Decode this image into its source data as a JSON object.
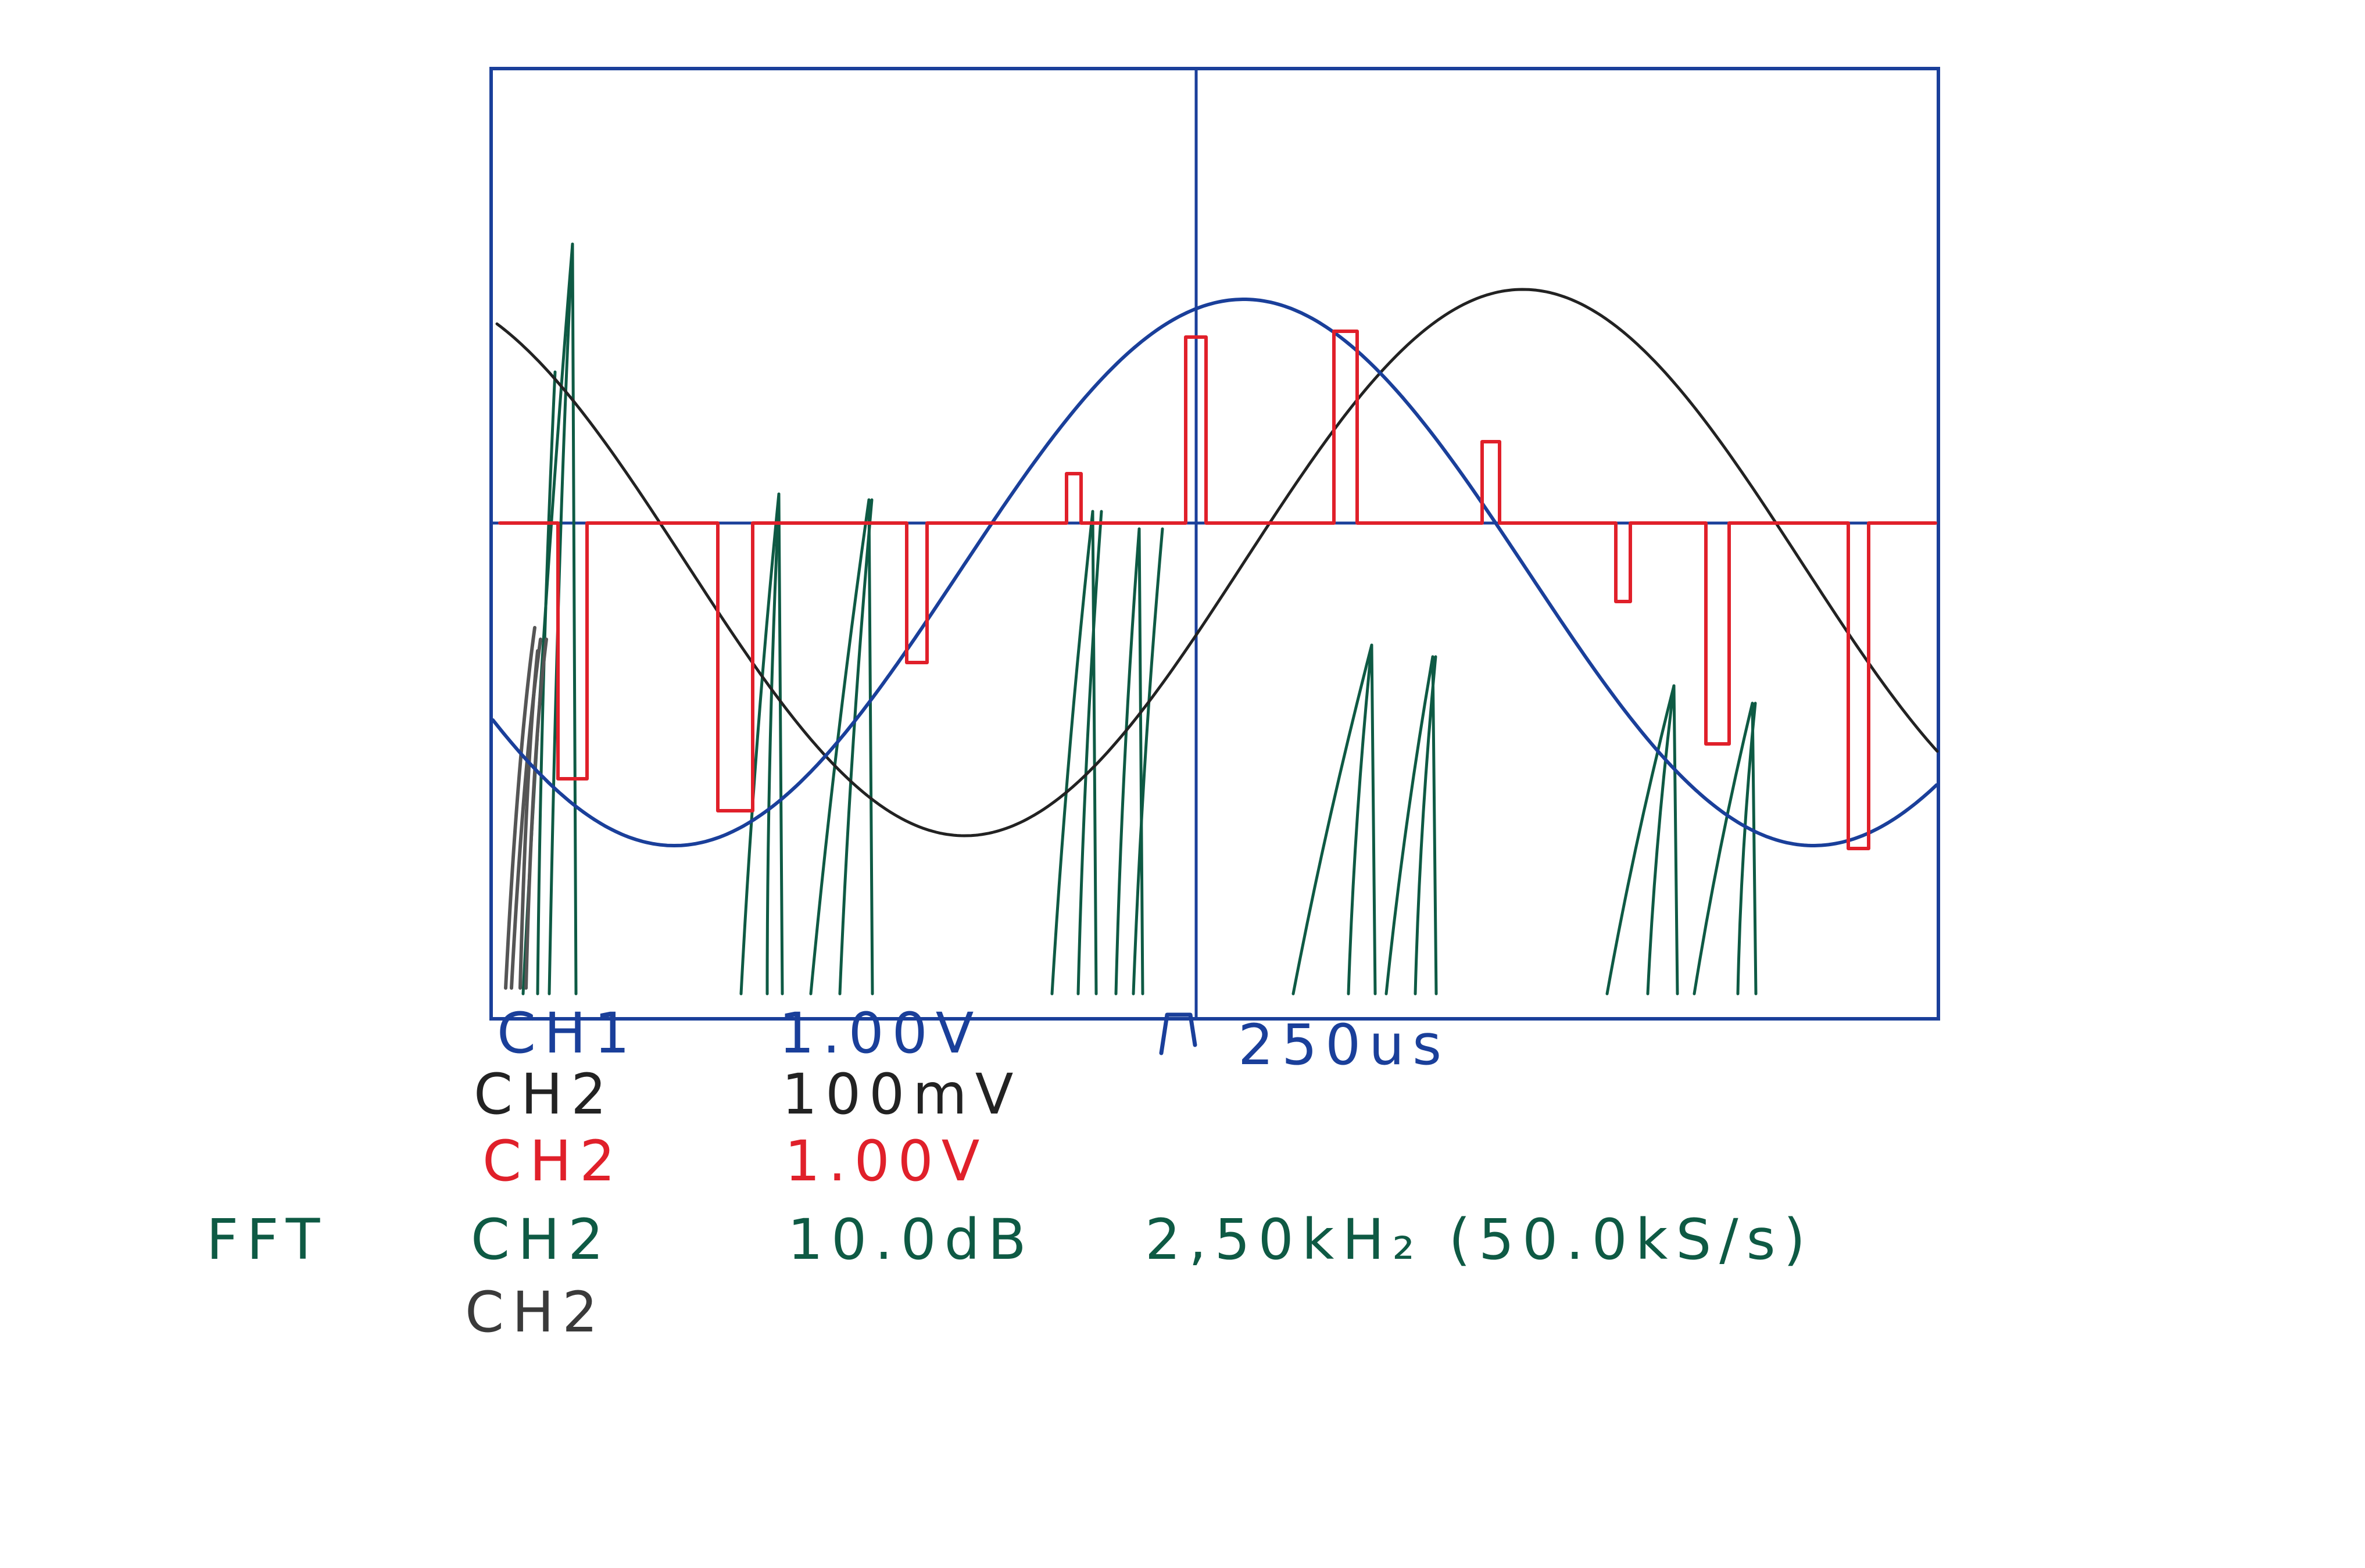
{
  "channels": [
    {
      "label": "CH1",
      "scale": "1.00V",
      "color": "#1a3f9a"
    },
    {
      "label": "CH2",
      "scale": "100mV",
      "color": "#222222"
    },
    {
      "label": "CH2",
      "scale": "1.00V",
      "color": "#e0202a"
    }
  ],
  "timebase": "250us",
  "fft": {
    "label": "FFT",
    "channel": "CH2",
    "scale": "10.0dB",
    "span": "2,50kH₂ (50.0kS/s)",
    "extra_channel": "CH2"
  },
  "icons": [
    "trigger-edge-icon"
  ],
  "colors": {
    "frame": "#1a3f9a",
    "ch1": "#1a3f9a",
    "ch2_black": "#222222",
    "ch2_red": "#e0202a",
    "fft": "#0e5a44",
    "fft_gray": "#555555"
  }
}
